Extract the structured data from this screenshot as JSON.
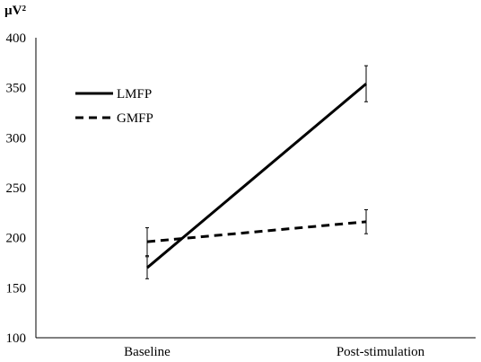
{
  "chart_data": {
    "type": "line",
    "ylabel": "µV²",
    "categories": [
      "Baseline",
      "Post-stimulation"
    ],
    "ylim": [
      100,
      400
    ],
    "yticks": [
      100,
      150,
      200,
      250,
      300,
      350,
      400
    ],
    "grid": false,
    "legend_position": "top-left",
    "series": [
      {
        "name": "LMFP",
        "values": [
          170,
          354
        ],
        "error": [
          11,
          18
        ],
        "line_style": "solid",
        "color": "#000000"
      },
      {
        "name": "GMFP",
        "values": [
          196,
          216
        ],
        "error": [
          14,
          12
        ],
        "line_style": "dashed",
        "color": "#000000"
      }
    ]
  }
}
